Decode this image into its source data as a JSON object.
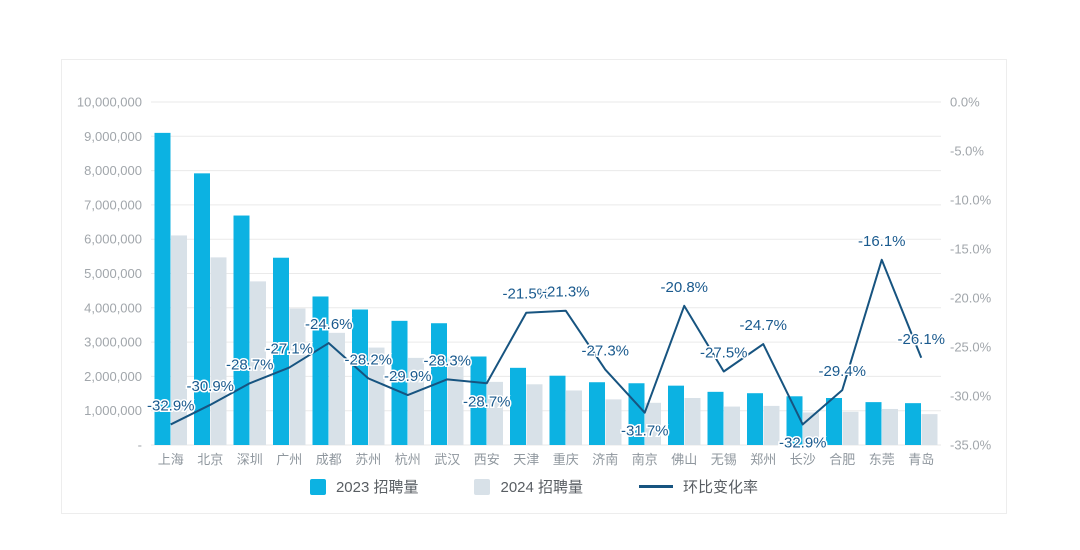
{
  "chart_data": {
    "type": "bar",
    "subtype": "grouped-bars-with-line-combo",
    "title": "",
    "categories": [
      "上海",
      "北京",
      "深圳",
      "广州",
      "成都",
      "苏州",
      "杭州",
      "武汉",
      "西安",
      "天津",
      "重庆",
      "济南",
      "南京",
      "佛山",
      "无锡",
      "郑州",
      "长沙",
      "合肥",
      "东莞",
      "青岛"
    ],
    "series": [
      {
        "name": "2023 招聘量",
        "type": "bar",
        "color": "#0cb2e2",
        "values": [
          9100000,
          7920000,
          6690000,
          5460000,
          4330000,
          3950000,
          3620000,
          3550000,
          2580000,
          2250000,
          2020000,
          1830000,
          1800000,
          1730000,
          1550000,
          1510000,
          1420000,
          1370000,
          1250000,
          1220000
        ]
      },
      {
        "name": "2024 招聘量",
        "type": "bar",
        "color": "#d8e1e8",
        "values": [
          6110000,
          5470000,
          4770000,
          3980000,
          3270000,
          2840000,
          2540000,
          2550000,
          1840000,
          1770000,
          1590000,
          1330000,
          1230000,
          1370000,
          1120000,
          1140000,
          950000,
          970000,
          1050000,
          900000
        ]
      },
      {
        "name": "环比变化率",
        "type": "line",
        "color": "#175480",
        "values": [
          -32.9,
          -30.9,
          -28.7,
          -27.1,
          -24.6,
          -28.2,
          -29.9,
          -28.3,
          -28.7,
          -21.5,
          -21.3,
          -27.3,
          -31.7,
          -20.8,
          -27.5,
          -24.7,
          -32.9,
          -29.4,
          -16.1,
          -26.1
        ],
        "point_labels": [
          "-32.9%",
          "-30.9%",
          "-28.7%",
          "-27.1%",
          "-24.6%",
          "-28.2%",
          "-29.9%",
          "-28.3%",
          "-28.7%",
          "-21.5%",
          "-21.3%",
          "-27.3%",
          "-31.7%",
          "-20.8%",
          "-27.5%",
          "-24.7%",
          "-32.9%",
          "-29.4%",
          "-16.1%",
          "-26.1%"
        ],
        "label_position": [
          "above",
          "above",
          "above",
          "above",
          "above",
          "above",
          "above",
          "above",
          "below",
          "above",
          "above",
          "above",
          "below",
          "above",
          "above",
          "above",
          "below",
          "above",
          "above",
          "above"
        ]
      }
    ],
    "left_axis": {
      "ticks": [
        "10,000,000",
        "9,000,000",
        "8,000,000",
        "7,000,000",
        "6,000,000",
        "5,000,000",
        "4,000,000",
        "3,000,000",
        "2,000,000",
        "1,000,000",
        "-"
      ],
      "min": 0,
      "max": 10000000
    },
    "right_axis": {
      "ticks": [
        "0.0%",
        "-5.0%",
        "-10.0%",
        "-15.0%",
        "-20.0%",
        "-25.0%",
        "-30.0%",
        "-35.0%"
      ],
      "min": -35,
      "max": 0
    },
    "grid": true,
    "legend_position": "bottom",
    "colors": {
      "grid": "#eaeaea",
      "axis_text": "#a1a6ab",
      "category_text": "#8f979e",
      "point_label_text": "#1a5a8e"
    }
  }
}
